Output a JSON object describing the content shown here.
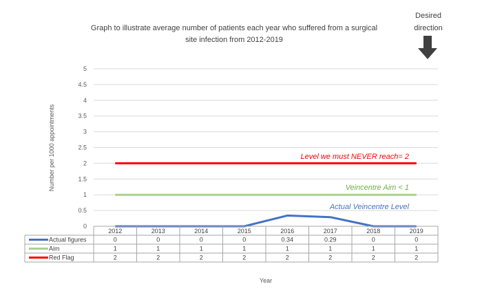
{
  "chart_data": {
    "type": "line",
    "title_lines": [
      "Graph to illustrate  average number of patients each year who suffered from a surgical",
      "site infection from 2012-2019"
    ],
    "xlabel": "Year",
    "ylabel": "Number per 1000 appointments",
    "ylim": [
      0,
      5
    ],
    "yticks": [
      "0",
      "0.5",
      "1",
      "1.5",
      "2",
      "2.5",
      "3",
      "3.5",
      "4",
      "4.5",
      "5"
    ],
    "categories": [
      "2012",
      "2013",
      "2014",
      "2015",
      "2016",
      "2017",
      "2018",
      "2019"
    ],
    "grid": true,
    "legend": "data table",
    "series": [
      {
        "name": "Actual figures",
        "color": "#4472C4",
        "values": [
          0,
          0,
          0,
          0,
          0.34,
          0.29,
          0,
          0
        ],
        "labels": [
          "0",
          "0",
          "0",
          "0",
          "0.34",
          "0.29",
          "0",
          "0"
        ]
      },
      {
        "name": "Aim",
        "color": "#A9D18E",
        "values": [
          1,
          1,
          1,
          1,
          1,
          1,
          1,
          1
        ],
        "labels": [
          "1",
          "1",
          "1",
          "1",
          "1",
          "1",
          "1",
          "1"
        ]
      },
      {
        "name": "Red Flag",
        "color": "#FF0000",
        "values": [
          2,
          2,
          2,
          2,
          2,
          2,
          2,
          2
        ],
        "labels": [
          "2",
          "2",
          "2",
          "2",
          "2",
          "2",
          "2",
          "2"
        ]
      }
    ],
    "annotations": [
      {
        "text": "Level we must NEVER reach= 2",
        "color": "#FF0000"
      },
      {
        "text": "Veincentre Aim < 1",
        "color": "#70AD47"
      },
      {
        "text": "Actual Veincentre Level",
        "color": "#4472C4"
      }
    ],
    "direction_note": {
      "lines": [
        "Desired",
        "direction"
      ],
      "icon": "arrow-down-icon"
    }
  }
}
